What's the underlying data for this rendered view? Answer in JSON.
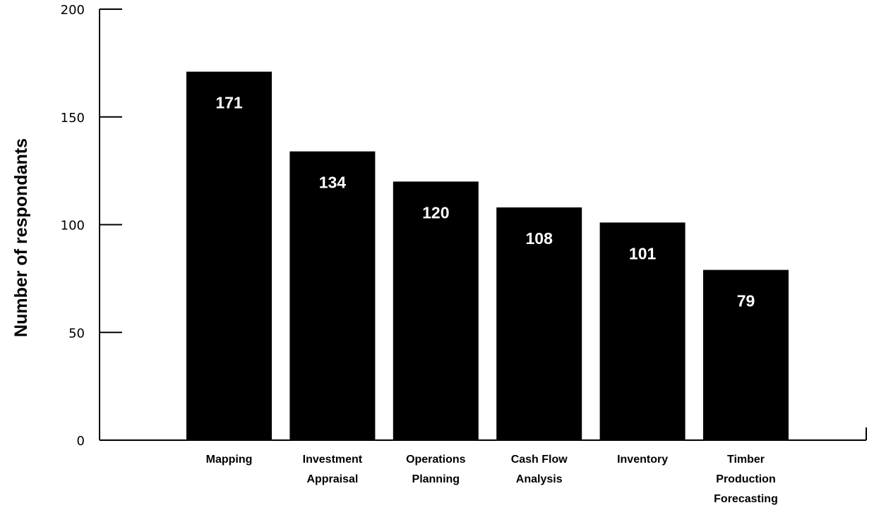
{
  "chart_data": {
    "type": "bar",
    "categories": [
      [
        "Mapping"
      ],
      [
        "Investment",
        "Appraisal"
      ],
      [
        "Operations",
        "Planning"
      ],
      [
        "Cash Flow",
        "Analysis"
      ],
      [
        "Inventory"
      ],
      [
        "Timber",
        "Production",
        "Forecasting"
      ]
    ],
    "values": [
      171,
      134,
      120,
      108,
      101,
      79
    ],
    "value_labels": [
      "171",
      "134",
      "120",
      "108",
      "101",
      "79"
    ],
    "ylabel": "Number of respondants",
    "xlabel": "",
    "ylim": [
      0,
      200
    ],
    "yticks": [
      0,
      50,
      100,
      150,
      200
    ],
    "ytick_labels": [
      "0",
      "50",
      "100",
      "150",
      "200"
    ],
    "bar_color": "#000000",
    "value_label_color": "#ffffff",
    "grid": false,
    "legend": "none"
  }
}
